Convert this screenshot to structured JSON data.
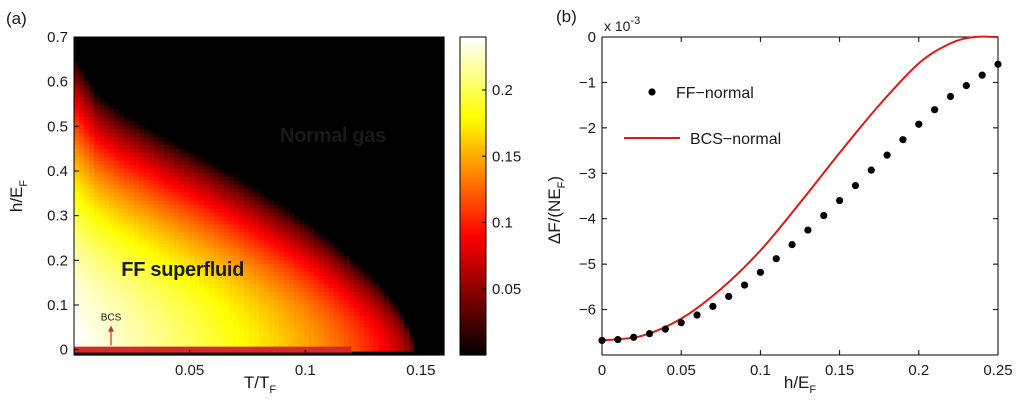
{
  "chart_data": [
    {
      "type": "heatmap",
      "panel_label": "(a)",
      "xlabel": {
        "main": "T/T",
        "sub": "F"
      },
      "ylabel": {
        "main": "h/E",
        "sub": "F"
      },
      "xlim": [
        0,
        0.16
      ],
      "ylim": [
        -0.012,
        0.7
      ],
      "xticks": [
        0.05,
        0.1,
        0.15
      ],
      "yticks": [
        0,
        0.1,
        0.2,
        0.3,
        0.4,
        0.5,
        0.6,
        0.7
      ],
      "colorbar": {
        "min": 0,
        "max": 0.24,
        "ticks": [
          0.05,
          0.1,
          0.15,
          0.2
        ],
        "colormap": "hot"
      },
      "phase_boundary": {
        "x": [
          0.0,
          0.01,
          0.02,
          0.03,
          0.04,
          0.05,
          0.06,
          0.07,
          0.08,
          0.09,
          0.1,
          0.11,
          0.12,
          0.13,
          0.14,
          0.145,
          0.148
        ],
        "y": [
          0.66,
          0.575,
          0.535,
          0.505,
          0.475,
          0.448,
          0.42,
          0.39,
          0.358,
          0.325,
          0.29,
          0.25,
          0.205,
          0.16,
          0.1,
          0.05,
          0.0
        ]
      },
      "peak_value": 0.24,
      "bcs_line": {
        "x_start": 0,
        "x_end": 0.12,
        "y": 0,
        "color": "#d42a2a"
      },
      "annotations": [
        {
          "text": "Normal gas",
          "x": 0.112,
          "y": 0.465,
          "color": "#ffffff"
        },
        {
          "text": "FF superfluid",
          "x": 0.047,
          "y": 0.165,
          "color": "#222222"
        },
        {
          "text": "BCS",
          "x": 0.016,
          "y": 0.065,
          "color": "#d42a2a"
        }
      ]
    },
    {
      "type": "line",
      "panel_label": "(b)",
      "xlabel": {
        "main": "h/E",
        "sub": "F"
      },
      "ylabel": {
        "main": "ΔF/(NE",
        "sub": "F",
        "close": ")"
      },
      "y_multiplier": {
        "prefix": "x 10",
        "exp": "-3"
      },
      "xlim": [
        0,
        0.25
      ],
      "ylim": [
        -7,
        0
      ],
      "xticks": [
        0,
        0.05,
        0.1,
        0.15,
        0.2,
        0.25
      ],
      "yticks": [
        0,
        -1,
        -2,
        -3,
        -4,
        -5,
        -6
      ],
      "legend_position": "upper-left",
      "series": [
        {
          "name": "FF−normal",
          "style": "dots",
          "color": "#000000",
          "x": [
            0,
            0.01,
            0.02,
            0.03,
            0.04,
            0.05,
            0.06,
            0.07,
            0.08,
            0.09,
            0.1,
            0.11,
            0.12,
            0.13,
            0.14,
            0.15,
            0.16,
            0.17,
            0.18,
            0.19,
            0.2,
            0.21,
            0.22,
            0.23,
            0.24,
            0.25
          ],
          "y": [
            -6.68,
            -6.66,
            -6.61,
            -6.53,
            -6.43,
            -6.29,
            -6.12,
            -5.93,
            -5.71,
            -5.46,
            -5.18,
            -4.88,
            -4.57,
            -4.25,
            -3.93,
            -3.6,
            -3.27,
            -2.93,
            -2.6,
            -2.26,
            -1.92,
            -1.6,
            -1.31,
            -1.07,
            -0.84,
            -0.6
          ]
        },
        {
          "name": "BCS−normal",
          "style": "line",
          "color": "#e01818",
          "x": [
            0,
            0.025,
            0.05,
            0.075,
            0.1,
            0.125,
            0.15,
            0.175,
            0.2,
            0.22,
            0.235,
            0.25
          ],
          "y": [
            -6.68,
            -6.58,
            -6.2,
            -5.55,
            -4.7,
            -3.65,
            -2.55,
            -1.5,
            -0.58,
            -0.14,
            0,
            0
          ]
        }
      ]
    }
  ]
}
